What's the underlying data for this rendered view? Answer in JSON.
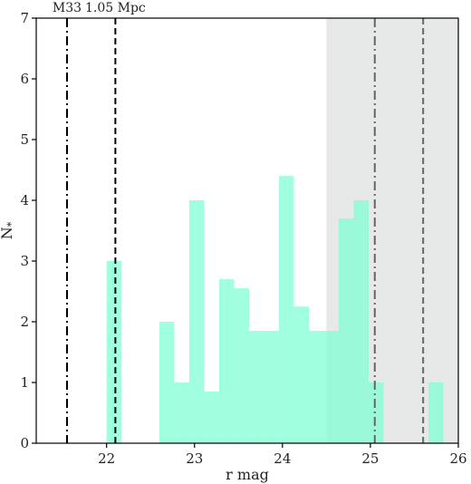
{
  "chart_data": {
    "type": "bar",
    "xlabel": "r mag",
    "ylabel": "N",
    "ylabel_subscript": "*",
    "xlim": [
      21.2,
      26.0
    ],
    "ylim": [
      0,
      7
    ],
    "xticks": [
      "22",
      "23",
      "24",
      "25",
      "26"
    ],
    "yticks": [
      "0",
      "1",
      "2",
      "3",
      "4",
      "5",
      "6",
      "7"
    ],
    "bin_width": 0.17,
    "bars": [
      {
        "x": 22.0,
        "value": 3.0
      },
      {
        "x": 22.6,
        "value": 2.0
      },
      {
        "x": 22.77,
        "value": 1.0
      },
      {
        "x": 22.94,
        "value": 4.0
      },
      {
        "x": 23.11,
        "value": 0.85
      },
      {
        "x": 23.28,
        "value": 2.7
      },
      {
        "x": 23.45,
        "value": 2.55
      },
      {
        "x": 23.62,
        "value": 1.85
      },
      {
        "x": 23.79,
        "value": 1.85
      },
      {
        "x": 23.96,
        "value": 4.4
      },
      {
        "x": 24.13,
        "value": 2.25
      },
      {
        "x": 24.3,
        "value": 1.85
      },
      {
        "x": 24.47,
        "value": 1.85
      },
      {
        "x": 24.64,
        "value": 3.7
      },
      {
        "x": 24.81,
        "value": 4.0
      },
      {
        "x": 24.98,
        "value": 1.0
      },
      {
        "x": 25.66,
        "value": 1.0
      }
    ],
    "shaded_region": {
      "x0": 24.5,
      "x1": 26.0
    },
    "reference_lines": [
      {
        "x": 21.55,
        "style": "dashdot",
        "label": "M33",
        "color": "#000000"
      },
      {
        "x": 22.1,
        "style": "dashed",
        "label": "1.05 Mpc",
        "color": "#000000"
      },
      {
        "x": 25.05,
        "style": "dashdot",
        "label": "",
        "color": "#666666"
      },
      {
        "x": 25.6,
        "style": "dashed",
        "label": "",
        "color": "#666666"
      }
    ],
    "colors": {
      "bar": "#7fffd4",
      "shade": "#d3d6d6",
      "axis": "#000000"
    }
  }
}
